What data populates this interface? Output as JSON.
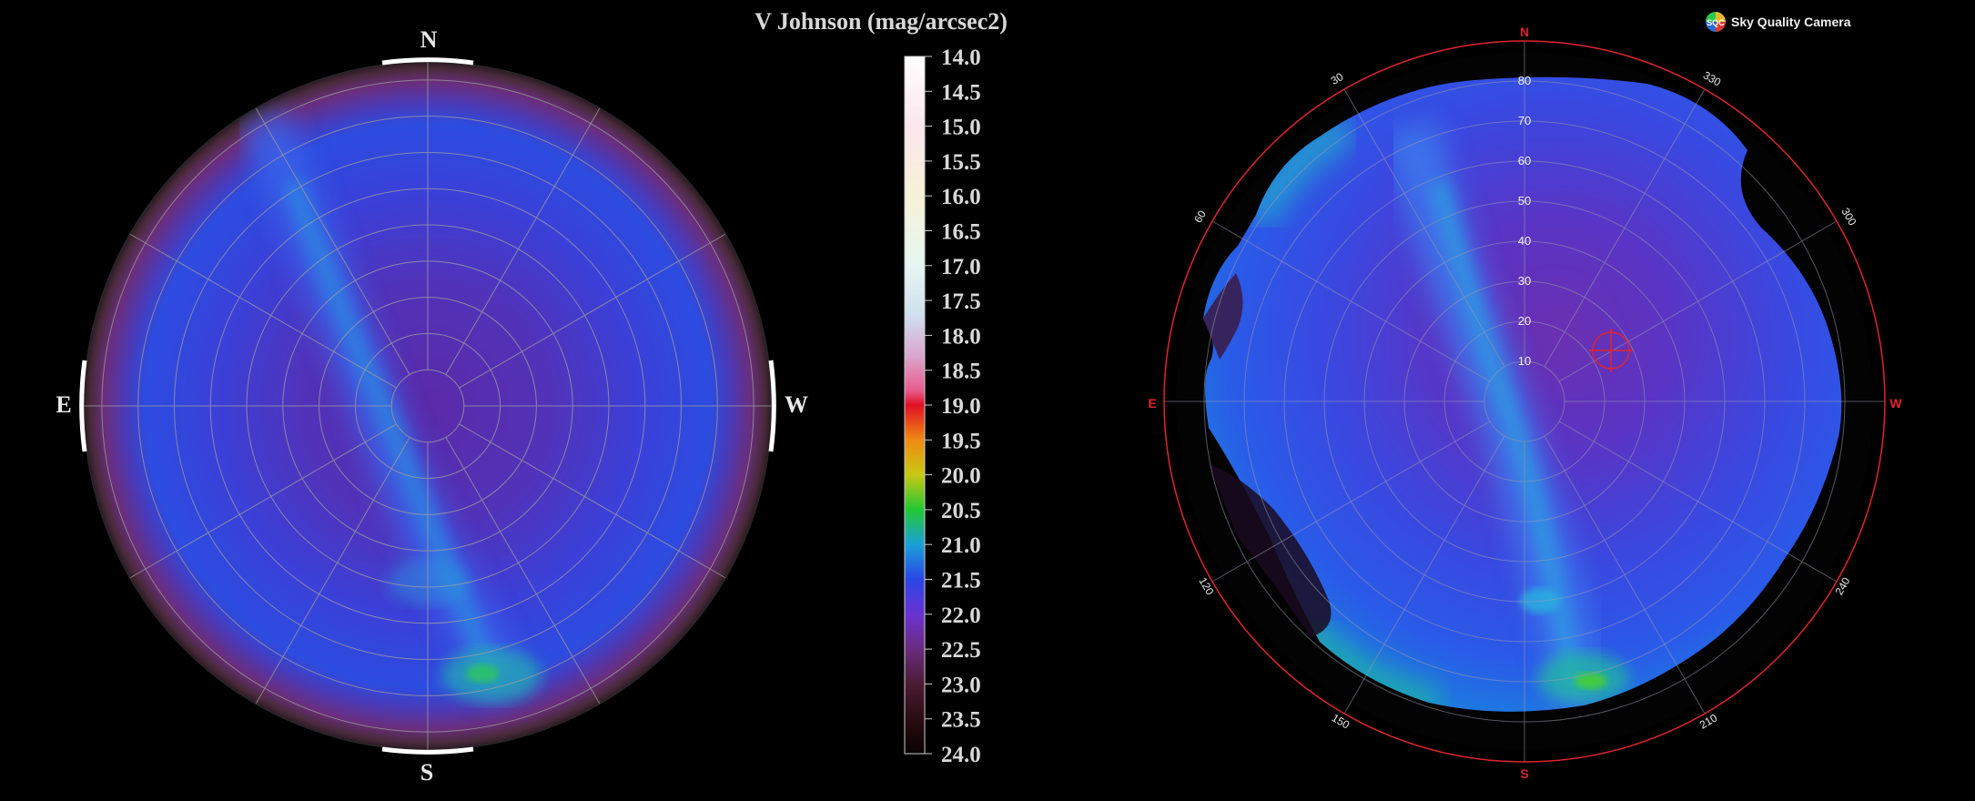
{
  "colorbar": {
    "title": "V Johnson (mag/arcsec2)",
    "ticks": [
      "14.0",
      "14.5",
      "15.0",
      "15.5",
      "16.0",
      "16.5",
      "17.0",
      "17.5",
      "18.0",
      "18.5",
      "19.0",
      "19.5",
      "20.0",
      "20.5",
      "21.0",
      "21.5",
      "22.0",
      "22.5",
      "23.0",
      "23.5",
      "24.0"
    ],
    "stops": [
      {
        "mag": 14.0,
        "color": "#ffffff"
      },
      {
        "mag": 15.0,
        "color": "#fbe6ee"
      },
      {
        "mag": 16.0,
        "color": "#f6f2d8"
      },
      {
        "mag": 17.0,
        "color": "#e6f6f2"
      },
      {
        "mag": 17.7,
        "color": "#cfe0ee"
      },
      {
        "mag": 18.3,
        "color": "#d9a6cc"
      },
      {
        "mag": 18.8,
        "color": "#e85a8a"
      },
      {
        "mag": 19.0,
        "color": "#e01024"
      },
      {
        "mag": 19.5,
        "color": "#f08a14"
      },
      {
        "mag": 20.0,
        "color": "#c8c814"
      },
      {
        "mag": 20.5,
        "color": "#22c832"
      },
      {
        "mag": 21.0,
        "color": "#1aa0d8"
      },
      {
        "mag": 21.5,
        "color": "#2a46e6"
      },
      {
        "mag": 22.0,
        "color": "#6a32d2"
      },
      {
        "mag": 22.5,
        "color": "#6a2c7e"
      },
      {
        "mag": 23.0,
        "color": "#4a1c32"
      },
      {
        "mag": 23.5,
        "color": "#2a0c12"
      },
      {
        "mag": 24.0,
        "color": "#080202"
      }
    ]
  },
  "left_map": {
    "cardinals": {
      "north": "N",
      "south": "S",
      "east": "E",
      "west": "W"
    }
  },
  "right_map": {
    "logo_badge": "SQC",
    "logo_text": "Sky Quality Camera",
    "cardinals": {
      "north": "N",
      "south": "S",
      "east": "E",
      "west": "W"
    },
    "azimuth_labels": {
      "a30": "30",
      "a60": "60",
      "a120": "120",
      "a150": "150",
      "a210": "210",
      "a240": "240",
      "a300": "300",
      "a330": "330"
    },
    "altitude_labels": [
      "80",
      "70",
      "60",
      "50",
      "40",
      "30",
      "20",
      "10"
    ],
    "accent_color": "#e0242e"
  }
}
